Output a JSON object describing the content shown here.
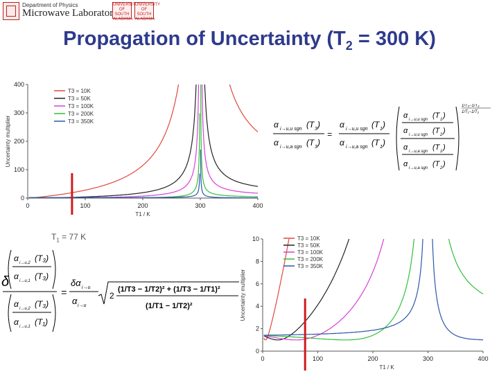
{
  "header": {
    "dept_small": "Department of Physics",
    "dept_big": "Microwave Laboratory",
    "logo_right_1": "UNIVERSITY OF SOUTH ALABAMA",
    "logo_right_2": "UNIVERSITY OF SOUTH ALABAMA"
  },
  "slide": {
    "title_main": "Propagation of Uncertainty (T",
    "title_sub": "2",
    "title_rest": " = 300 K)"
  },
  "annotations": {
    "t1_label_left": "T",
    "t1_sub_left": "1",
    "t1_rest_left": " = 77 K",
    "t1_label_bottom": "T",
    "t1_sub_bottom": "1",
    "t1_rest_bottom": " = 77 K"
  },
  "equations": {
    "eq1_lhs_num": "α (T3)",
    "eq1_lhs_den": "α (T3)",
    "eq2_rhs": "(1/T3 − 1/T2)² + (1/T3 − 1/T1)²",
    "eq2_den": "(1/T1 − 1/T2)²",
    "sqrt2": "√2"
  },
  "colors": {
    "title": "#2e3a8c",
    "red_marker": "#d0191e",
    "t10": "#e0473a",
    "t50": "#222222",
    "t100": "#d63fd6",
    "t200": "#2fbf3a",
    "t350": "#2b56a8"
  },
  "chart_data": [
    {
      "type": "line",
      "xlabel": "T1 / K",
      "ylabel": "Uncertainty multiplier",
      "xlim": [
        0,
        400
      ],
      "ylim": [
        0,
        400
      ],
      "xticks": [
        0,
        100,
        200,
        300,
        400
      ],
      "yticks": [
        0,
        100,
        200,
        300,
        400
      ],
      "legend_position": "top-left",
      "series": [
        {
          "name": "T3 = 10K",
          "color": "#e0473a",
          "T3": 10
        },
        {
          "name": "T3 = 50K",
          "color": "#222222",
          "T3": 50
        },
        {
          "name": "T3 = 100K",
          "color": "#d63fd6",
          "T3": 100
        },
        {
          "name": "T3 = 200K",
          "color": "#2fbf3a",
          "T3": 200
        },
        {
          "name": "T3 = 350K",
          "color": "#2b56a8",
          "T3": 350
        }
      ],
      "T2": 300,
      "marker_x": 77
    },
    {
      "type": "line",
      "xlabel": "T1 / K",
      "ylabel": "Uncertainty multiplier",
      "xlim": [
        0,
        400
      ],
      "ylim": [
        0,
        10
      ],
      "xticks": [
        0,
        100,
        200,
        300,
        400
      ],
      "yticks": [
        0,
        2,
        4,
        6,
        8,
        10
      ],
      "legend_position": "top-right",
      "series": [
        {
          "name": "T3 = 10K",
          "color": "#e0473a",
          "T3": 10
        },
        {
          "name": "T3 = 50K",
          "color": "#222222",
          "T3": 50
        },
        {
          "name": "T3 = 100K",
          "color": "#d63fd6",
          "T3": 100
        },
        {
          "name": "T3 = 200K",
          "color": "#2fbf3a",
          "T3": 200
        },
        {
          "name": "T3 = 350K",
          "color": "#2b56a8",
          "T3": 350
        }
      ],
      "T2": 300,
      "marker_x": 77
    }
  ]
}
